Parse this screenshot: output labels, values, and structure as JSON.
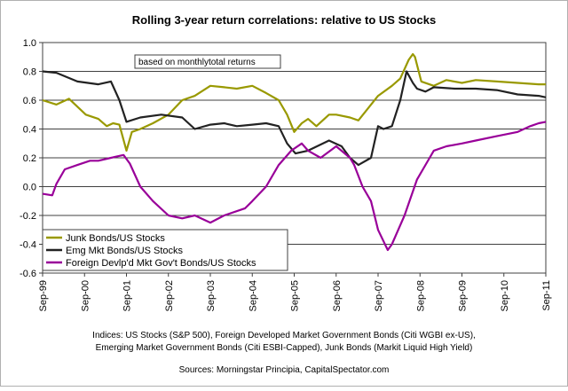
{
  "chart_data": {
    "type": "line",
    "title": "Rolling 3-year return correlations: relative to US Stocks",
    "subtitle_box": "based on monthlytotal returns",
    "xlabel": "",
    "ylabel": "",
    "ylim": [
      -0.6,
      1.0
    ],
    "yticks": [
      "1.0",
      "0.8",
      "0.6",
      "0.4",
      "0.2",
      "0.0",
      "-0.2",
      "-0.4",
      "-0.6"
    ],
    "ytick_values": [
      1.0,
      0.8,
      0.6,
      0.4,
      0.2,
      0.0,
      -0.2,
      -0.4,
      -0.6
    ],
    "xlim": [
      1999.67,
      2011.67
    ],
    "xticks": [
      "Sep-99",
      "Sep-00",
      "Sep-01",
      "Sep-02",
      "Sep-03",
      "Sep-04",
      "Sep-05",
      "Sep-06",
      "Sep-07",
      "Sep-08",
      "Sep-09",
      "Sep-10",
      "Sep-11"
    ],
    "xtick_values": [
      1999.67,
      2000.67,
      2001.67,
      2002.67,
      2003.67,
      2004.67,
      2005.67,
      2006.67,
      2007.67,
      2008.67,
      2009.67,
      2010.67,
      2011.67
    ],
    "grid": "horizontal",
    "legend_position": "bottom-left",
    "series": [
      {
        "name": "Junk Bonds/US Stocks",
        "color": "#999900",
        "x": [
          1999.67,
          2000.0,
          2000.3,
          2000.7,
          2001.0,
          2001.2,
          2001.35,
          2001.5,
          2001.67,
          2001.8,
          2002.0,
          2002.3,
          2002.67,
          2003.0,
          2003.3,
          2003.67,
          2004.0,
          2004.3,
          2004.67,
          2005.0,
          2005.3,
          2005.5,
          2005.67,
          2005.85,
          2006.0,
          2006.2,
          2006.5,
          2006.67,
          2007.0,
          2007.2,
          2007.67,
          2008.0,
          2008.2,
          2008.4,
          2008.5,
          2008.55,
          2008.7,
          2009.0,
          2009.3,
          2009.67,
          2010.0,
          2010.5,
          2011.0,
          2011.5,
          2011.67
        ],
        "values": [
          0.6,
          0.57,
          0.61,
          0.5,
          0.47,
          0.42,
          0.44,
          0.43,
          0.25,
          0.38,
          0.4,
          0.44,
          0.5,
          0.6,
          0.63,
          0.7,
          0.69,
          0.68,
          0.7,
          0.65,
          0.6,
          0.5,
          0.38,
          0.44,
          0.47,
          0.42,
          0.5,
          0.5,
          0.48,
          0.46,
          0.63,
          0.7,
          0.75,
          0.88,
          0.92,
          0.9,
          0.73,
          0.7,
          0.74,
          0.72,
          0.74,
          0.73,
          0.72,
          0.71,
          0.71
        ]
      },
      {
        "name": "Emg Mkt Bonds/US Stocks",
        "color": "#222222",
        "x": [
          1999.67,
          2000.0,
          2000.5,
          2001.0,
          2001.3,
          2001.5,
          2001.67,
          2002.0,
          2002.5,
          2003.0,
          2003.3,
          2003.67,
          2004.0,
          2004.3,
          2004.67,
          2005.0,
          2005.3,
          2005.5,
          2005.7,
          2006.0,
          2006.5,
          2006.8,
          2007.0,
          2007.2,
          2007.5,
          2007.67,
          2007.8,
          2008.0,
          2008.2,
          2008.35,
          2008.5,
          2008.6,
          2008.8,
          2009.0,
          2009.5,
          2010.0,
          2010.5,
          2011.0,
          2011.5,
          2011.67
        ],
        "values": [
          0.8,
          0.79,
          0.73,
          0.71,
          0.73,
          0.6,
          0.45,
          0.48,
          0.5,
          0.48,
          0.4,
          0.43,
          0.44,
          0.42,
          0.43,
          0.44,
          0.42,
          0.3,
          0.23,
          0.25,
          0.32,
          0.28,
          0.2,
          0.15,
          0.2,
          0.42,
          0.4,
          0.42,
          0.6,
          0.8,
          0.72,
          0.68,
          0.66,
          0.69,
          0.68,
          0.68,
          0.67,
          0.64,
          0.63,
          0.62
        ]
      },
      {
        "name": "Foreign Devlp'd Mkt Gov't Bonds/US Stocks",
        "color": "#990099",
        "x": [
          1999.67,
          1999.9,
          2000.0,
          2000.2,
          2000.5,
          2000.8,
          2001.0,
          2001.3,
          2001.6,
          2001.75,
          2002.0,
          2002.3,
          2002.67,
          2003.0,
          2003.3,
          2003.67,
          2004.0,
          2004.5,
          2004.67,
          2005.0,
          2005.3,
          2005.6,
          2005.85,
          2006.0,
          2006.3,
          2006.67,
          2007.0,
          2007.1,
          2007.3,
          2007.5,
          2007.67,
          2007.9,
          2008.0,
          2008.3,
          2008.6,
          2008.9,
          2009.0,
          2009.3,
          2009.67,
          2010.0,
          2010.5,
          2011.0,
          2011.3,
          2011.5,
          2011.67
        ],
        "values": [
          -0.05,
          -0.06,
          0.02,
          0.12,
          0.15,
          0.18,
          0.18,
          0.2,
          0.22,
          0.16,
          0.0,
          -0.1,
          -0.2,
          -0.22,
          -0.2,
          -0.25,
          -0.2,
          -0.15,
          -0.1,
          0.0,
          0.15,
          0.25,
          0.3,
          0.25,
          0.2,
          0.28,
          0.2,
          0.15,
          0.0,
          -0.1,
          -0.3,
          -0.44,
          -0.4,
          -0.2,
          0.05,
          0.2,
          0.25,
          0.28,
          0.3,
          0.32,
          0.35,
          0.38,
          0.42,
          0.44,
          0.45
        ]
      }
    ],
    "footnote_lines": [
      "Indices: US Stocks (S&P 500), Foreign Developed Market Government Bonds (Citi WGBI ex-US),",
      "Emerging Market Government Bonds (Citi ESBI-Capped), Junk Bonds (Markit Liquid High Yield)"
    ],
    "sources": "Sources: Morningstar Principia, CapitalSpectator.com"
  }
}
